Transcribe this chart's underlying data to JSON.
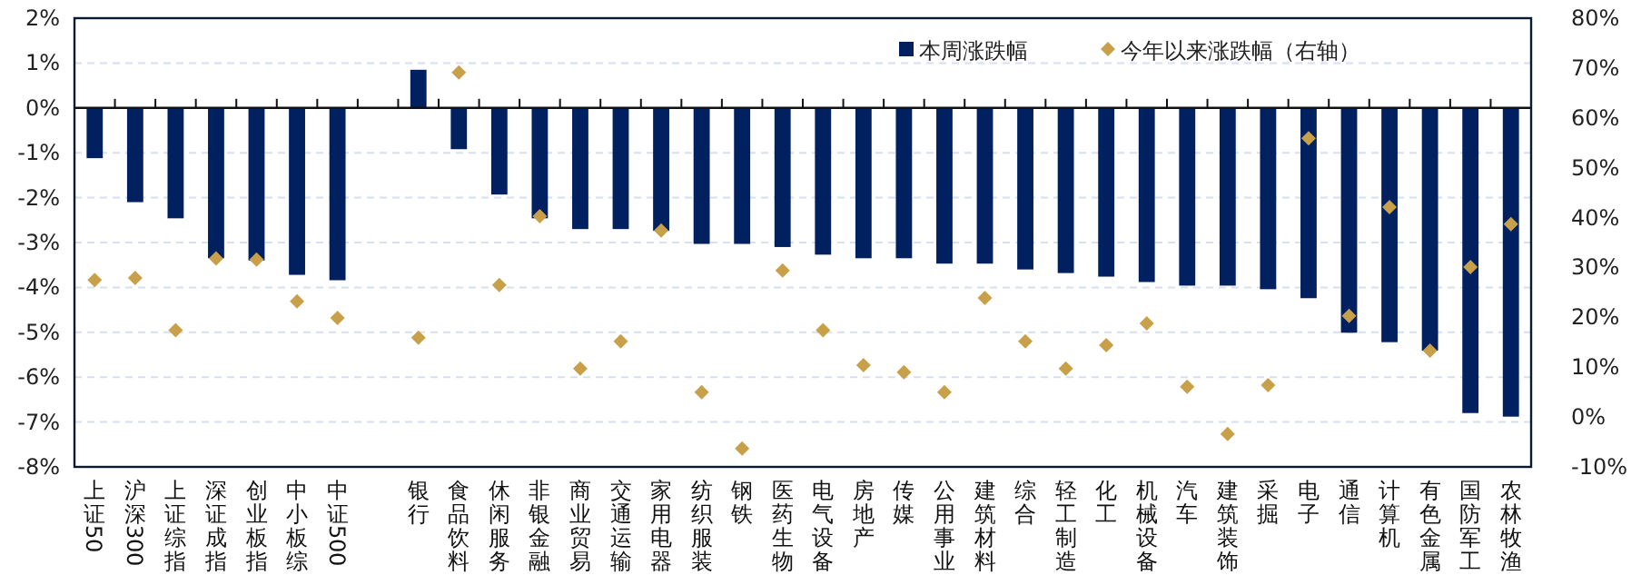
{
  "chart_data": {
    "type": "bar",
    "categories": [
      "上证50",
      "沪深300",
      "上证综指",
      "深证成指",
      "创业板指",
      "中小板综",
      "中证500",
      null,
      "银行",
      "食品饮料",
      "休闲服务",
      "非银金融",
      "商业贸易",
      "交通运输",
      "家用电器",
      "纺织服装",
      "钢铁",
      "医药生物",
      "电气设备",
      "房地产",
      "传媒",
      "公用事业",
      "建筑材料",
      "综合",
      "轻工制造",
      "化工",
      "机械设备",
      "汽车",
      "建筑装饰",
      "采掘",
      "电子",
      "通信",
      "计算机",
      "有色金属",
      "国防军工",
      "农林牧渔"
    ],
    "series": [
      {
        "name": "本周涨跌幅",
        "color": "#002060",
        "values": [
          -1.12,
          -2.1,
          -2.46,
          -3.35,
          -3.4,
          -3.72,
          -3.84,
          null,
          0.85,
          -0.92,
          -1.93,
          -2.46,
          -2.7,
          -2.7,
          -2.74,
          -3.03,
          -3.03,
          -3.1,
          -3.27,
          -3.35,
          -3.35,
          -3.47,
          -3.47,
          -3.6,
          -3.68,
          -3.76,
          -3.88,
          -3.96,
          -3.96,
          -4.04,
          -4.24,
          -5.01,
          -5.22,
          -5.41,
          -6.8,
          -6.88
        ]
      },
      {
        "name": "今年以来涨跌幅（右轴）",
        "type": "scatter",
        "axis": "y2",
        "marker": "diamond",
        "color": "#c9a04a",
        "values": [
          27.5,
          27.9,
          17.4,
          31.8,
          31.6,
          23.2,
          19.9,
          null,
          15.9,
          69.1,
          26.5,
          40.3,
          9.7,
          15.2,
          37.4,
          5.0,
          -6.3,
          29.4,
          17.4,
          10.4,
          9.0,
          5.0,
          23.9,
          15.2,
          9.7,
          14.4,
          18.8,
          6.1,
          -3.4,
          6.4,
          55.9,
          20.3,
          42.1,
          13.3,
          30.1,
          38.7
        ]
      }
    ],
    "ylim": [
      -8,
      2
    ],
    "yticks": [
      {
        "value": -8,
        "label": "-8%"
      },
      {
        "value": -7,
        "label": "-7%"
      },
      {
        "value": -6,
        "label": "-6%"
      },
      {
        "value": -5,
        "label": "-5%"
      },
      {
        "value": -4,
        "label": "-4%"
      },
      {
        "value": -3,
        "label": "-3%"
      },
      {
        "value": -2,
        "label": "-2%"
      },
      {
        "value": -1,
        "label": "-1%"
      },
      {
        "value": 0,
        "label": "0%"
      },
      {
        "value": 1,
        "label": "1%"
      },
      {
        "value": 2,
        "label": "2%"
      }
    ],
    "y2lim": [
      -10,
      80
    ],
    "y2ticks": [
      {
        "value": -10,
        "label": "-10%"
      },
      {
        "value": 0,
        "label": "0%"
      },
      {
        "value": 10,
        "label": "10%"
      },
      {
        "value": 20,
        "label": "20%"
      },
      {
        "value": 30,
        "label": "30%"
      },
      {
        "value": 40,
        "label": "40%"
      },
      {
        "value": 50,
        "label": "50%"
      },
      {
        "value": 60,
        "label": "60%"
      },
      {
        "value": 70,
        "label": "70%"
      },
      {
        "value": 80,
        "label": "80%"
      }
    ],
    "grid": "y",
    "legend": "top right"
  }
}
